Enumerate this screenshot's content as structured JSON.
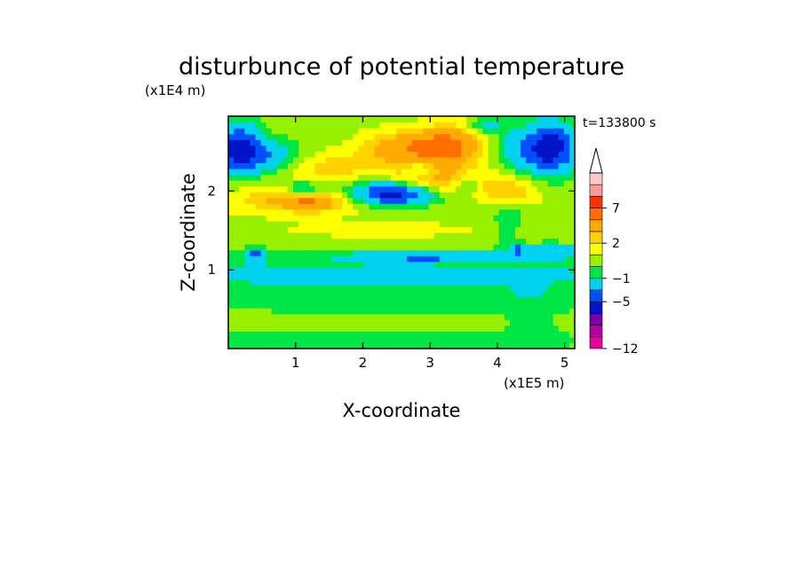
{
  "chart_data": {
    "type": "heatmap",
    "title": "disturbunce of potential temperature",
    "xlabel": "X-coordinate",
    "ylabel": "Z-coordinate",
    "x_unit": "(x1E5 m)",
    "y_unit": "(x1E4 m)",
    "time_label": "t=133800 s",
    "xlim": [
      0,
      5.15
    ],
    "ylim": [
      0,
      2.95
    ],
    "x_ticks": [
      1,
      2,
      3,
      4,
      5
    ],
    "x_tick_labels": [
      "1",
      "2",
      "3",
      "4",
      "5"
    ],
    "y_ticks": [
      1,
      2
    ],
    "y_tick_labels": [
      "1",
      "2"
    ],
    "colorbar": {
      "levels": [
        -12,
        -11,
        -9,
        -7,
        -5,
        -3,
        -1,
        0,
        1,
        2,
        3,
        5,
        7,
        9,
        11
      ],
      "colors": [
        "#e8009a",
        "#b4009e",
        "#7a00a8",
        "#0014c8",
        "#0050ff",
        "#00d2f0",
        "#00e646",
        "#96f000",
        "#ffff00",
        "#ffd200",
        "#ffaa00",
        "#ff6e00",
        "#ff3200",
        "#ff9a9a",
        "#ffc8c8"
      ],
      "tick_labels": [
        "7",
        "2",
        "-1",
        "-5",
        "-12"
      ],
      "tick_label_values": [
        7,
        2,
        -1,
        -5,
        -12
      ],
      "extend": "max"
    },
    "field": {
      "nx": 64,
      "nz": 40,
      "x_range": [
        0,
        5.15
      ],
      "z_range": [
        0,
        2.95
      ],
      "background": 0.6,
      "features": [
        {
          "x": 2.3,
          "z": 0.95,
          "sx": 5.0,
          "sz": 0.2,
          "amp": -1.9
        },
        {
          "x": 1.75,
          "z": 0.1,
          "sx": 4.0,
          "sz": 0.13,
          "amp": -0.9
        },
        {
          "x": 2.5,
          "z": 0.5,
          "sx": 5.0,
          "sz": 0.08,
          "amp": -0.5
        },
        {
          "x": 2.4,
          "z": 0.68,
          "sx": 5.0,
          "sz": 0.08,
          "amp": -0.6
        },
        {
          "x": 1.0,
          "z": 1.9,
          "sx": 0.7,
          "sz": 0.12,
          "amp": 2.8
        },
        {
          "x": 1.2,
          "z": 1.85,
          "sx": 0.25,
          "sz": 0.07,
          "amp": 2.2
        },
        {
          "x": 0.15,
          "z": 2.55,
          "sx": 0.22,
          "sz": 0.22,
          "amp": -6.0
        },
        {
          "x": 0.55,
          "z": 2.45,
          "sx": 0.35,
          "sz": 0.15,
          "amp": -3.5
        },
        {
          "x": 1.1,
          "z": 2.05,
          "sx": 0.2,
          "sz": 0.06,
          "amp": -3.0
        },
        {
          "x": 2.45,
          "z": 1.95,
          "sx": 0.4,
          "sz": 0.09,
          "amp": -5.5
        },
        {
          "x": 2.2,
          "z": 2.05,
          "sx": 0.5,
          "sz": 0.1,
          "amp": -2.0
        },
        {
          "x": 1.5,
          "z": 2.3,
          "sx": 0.6,
          "sz": 0.15,
          "amp": 1.8
        },
        {
          "x": 3.15,
          "z": 2.55,
          "sx": 0.35,
          "sz": 0.16,
          "amp": 5.5
        },
        {
          "x": 2.45,
          "z": 2.55,
          "sx": 0.35,
          "sz": 0.15,
          "amp": 2.8
        },
        {
          "x": 3.15,
          "z": 2.15,
          "sx": 0.5,
          "sz": 0.12,
          "amp": 2.6
        },
        {
          "x": 2.9,
          "z": 2.3,
          "sx": 0.18,
          "sz": 0.08,
          "amp": -1.6
        },
        {
          "x": 3.55,
          "z": 2.1,
          "sx": 0.15,
          "sz": 0.1,
          "amp": -2.2
        },
        {
          "x": 4.15,
          "z": 2.0,
          "sx": 0.3,
          "sz": 0.13,
          "amp": 2.6
        },
        {
          "x": 3.5,
          "z": 2.7,
          "sx": 0.3,
          "sz": 0.25,
          "amp": 1.2
        },
        {
          "x": 4.8,
          "z": 2.55,
          "sx": 0.25,
          "sz": 0.22,
          "amp": -7.0
        },
        {
          "x": 4.3,
          "z": 2.55,
          "sx": 0.25,
          "sz": 0.2,
          "amp": -2.5
        },
        {
          "x": 3.8,
          "z": 2.85,
          "sx": 0.2,
          "sz": 0.08,
          "amp": -2.5
        },
        {
          "x": 0.4,
          "z": 1.2,
          "sx": 0.1,
          "sz": 0.06,
          "amp": -4.0
        },
        {
          "x": 2.9,
          "z": 1.18,
          "sx": 0.7,
          "sz": 0.035,
          "amp": -4.5
        },
        {
          "x": 4.8,
          "z": 1.25,
          "sx": 0.3,
          "sz": 0.06,
          "amp": -3.0
        },
        {
          "x": 4.3,
          "z": 1.27,
          "sx": 0.05,
          "sz": 0.05,
          "amp": -3.5
        },
        {
          "x": 4.5,
          "z": 0.3,
          "sx": 0.25,
          "sz": 0.3,
          "amp": -0.9
        },
        {
          "x": 4.15,
          "z": 1.7,
          "sx": 0.15,
          "sz": 0.25,
          "amp": -1.6
        },
        {
          "x": 2.3,
          "z": 1.5,
          "sx": 1.4,
          "sz": 0.1,
          "amp": 0.7
        }
      ]
    }
  }
}
